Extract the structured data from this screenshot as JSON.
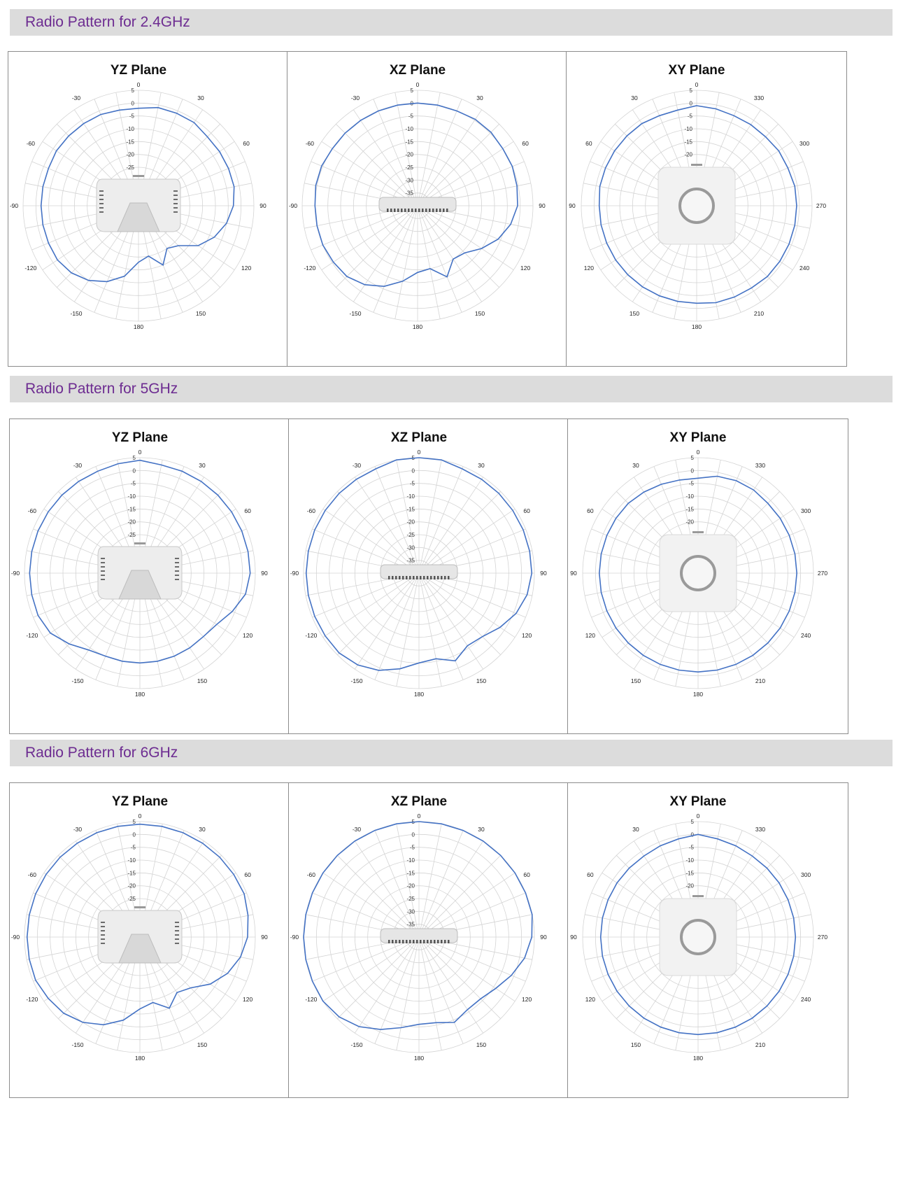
{
  "sections": [
    {
      "title": "Radio Pattern for 2.4GHz",
      "charts": [
        {
          "title": "YZ Plane",
          "angles": [
            "0",
            "30",
            "60",
            "90",
            "120",
            "150",
            "180",
            "-150",
            "-120",
            "-90",
            "-60",
            "-30"
          ],
          "radial_ticks": [
            "5",
            "0",
            "-5",
            "-10",
            "-15",
            "-20",
            "-25"
          ],
          "device": "ap-side",
          "values": [
            -2,
            -1,
            -1,
            -1,
            -2,
            -2,
            -2,
            -2,
            -3,
            -5,
            -8,
            -12,
            -18,
            -20,
            -15,
            -20,
            -18,
            -12,
            -8,
            -5,
            -3,
            -2,
            -2,
            -2,
            -2,
            -2,
            -2,
            -1.5,
            -1.5,
            -1.5,
            -1.5,
            -2
          ]
        },
        {
          "title": "XZ Plane",
          "angles": [
            "0",
            "30",
            "60",
            "90",
            "120",
            "150",
            "180",
            "-150",
            "-120",
            "-90",
            "-60",
            "-30"
          ],
          "radial_ticks": [
            "5",
            "0",
            "-5",
            "-10",
            "-15",
            "-20",
            "-25",
            "-30",
            "-35"
          ],
          "device": "ap-edge",
          "values": [
            0,
            0,
            0,
            0.5,
            0.5,
            0,
            0,
            -0.5,
            -1,
            -3,
            -6,
            -10,
            -14,
            -15,
            -10,
            -15,
            -14,
            -10,
            -6,
            -3,
            -1,
            -0.5,
            0,
            0,
            0,
            0.5,
            0.5,
            0,
            0,
            0,
            0,
            0
          ]
        },
        {
          "title": "XY Plane",
          "angles": [
            "0",
            "330",
            "300",
            "270",
            "240",
            "210",
            "180",
            "150",
            "120",
            "90",
            "60",
            "30"
          ],
          "radial_ticks": [
            "5",
            "0",
            "-5",
            "-10",
            "-15",
            "-20"
          ],
          "device": "ap-top",
          "values": [
            -1,
            -1.5,
            -2,
            -2,
            -2,
            -1.5,
            -1.5,
            -1,
            -1,
            -1,
            -1,
            -1,
            -1,
            -1.5,
            -1.5,
            -1.5,
            -2,
            -2,
            -2,
            -2,
            -2,
            -2,
            -2,
            -2,
            -2,
            -1.5,
            -1.5,
            -1.5,
            -1.5,
            -1.5,
            -2,
            -2
          ]
        }
      ]
    },
    {
      "title": "Radio Pattern for 5GHz",
      "charts": [
        {
          "title": "YZ Plane",
          "angles": [
            "0",
            "30",
            "60",
            "90",
            "120",
            "150",
            "180",
            "-150",
            "-120",
            "-90",
            "-60",
            "-30"
          ],
          "radial_ticks": [
            "5",
            "0",
            "-5",
            "-10",
            "-15",
            "-20",
            "-25"
          ],
          "device": "ap-side",
          "values": [
            4,
            3,
            3,
            3,
            3,
            3,
            3,
            3,
            3,
            2,
            -1,
            -4,
            -5,
            -5,
            -5,
            -5,
            -5,
            -5,
            -5,
            -4,
            -1,
            2,
            3,
            3,
            3,
            3,
            3,
            3,
            3,
            3,
            3,
            3.5
          ]
        },
        {
          "title": "XZ Plane",
          "angles": [
            "0",
            "30",
            "60",
            "90",
            "120",
            "150",
            "180",
            "-150",
            "-120",
            "-90",
            "-60",
            "-30"
          ],
          "radial_ticks": [
            "5",
            "0",
            "-5",
            "-10",
            "-15",
            "-20",
            "-25",
            "-30",
            "-35"
          ],
          "device": "ap-edge",
          "values": [
            5,
            5,
            4,
            4,
            4,
            4,
            4,
            4,
            4,
            3,
            1,
            -2,
            -5,
            -6,
            -3,
            -6,
            -5,
            -2,
            1,
            3,
            4,
            4,
            4,
            4,
            4,
            4,
            4,
            4,
            4,
            4,
            4,
            5
          ]
        },
        {
          "title": "XY Plane",
          "angles": [
            "0",
            "330",
            "300",
            "270",
            "240",
            "210",
            "180",
            "150",
            "120",
            "90",
            "60",
            "30"
          ],
          "radial_ticks": [
            "5",
            "0",
            "-5",
            "-10",
            "-15",
            "-20"
          ],
          "device": "ap-top",
          "values": [
            -3,
            -1.5,
            -1,
            -1,
            -1.5,
            -1.5,
            -1.5,
            -1.5,
            -1.5,
            -1.5,
            -1.5,
            -1.5,
            -1.5,
            -1.5,
            -1.5,
            -1.5,
            -1.5,
            -1.5,
            -1.5,
            -1.5,
            -1.5,
            -1.5,
            -1.5,
            -1.5,
            -1.5,
            -1.5,
            -1.5,
            -1.5,
            -1.5,
            -2,
            -2.5,
            -3
          ]
        }
      ]
    },
    {
      "title": "Radio Pattern for 6GHz",
      "charts": [
        {
          "title": "YZ Plane",
          "angles": [
            "0",
            "30",
            "60",
            "90",
            "120",
            "150",
            "180",
            "-150",
            "-120",
            "-90",
            "-60",
            "-30"
          ],
          "radial_ticks": [
            "5",
            "0",
            "-5",
            "-10",
            "-15",
            "-20",
            "-25"
          ],
          "device": "ap-side",
          "values": [
            4,
            4,
            4,
            4,
            4,
            4,
            4,
            3,
            2,
            0,
            -3,
            -7,
            -12,
            -14,
            -10,
            -14,
            -12,
            -7,
            -3,
            0,
            2,
            3,
            4,
            4,
            4,
            4,
            4,
            4,
            4,
            4,
            4,
            4
          ]
        },
        {
          "title": "XZ Plane",
          "angles": [
            "0",
            "30",
            "60",
            "90",
            "120",
            "150",
            "180",
            "-150",
            "-120",
            "-90",
            "-60",
            "-30"
          ],
          "radial_ticks": [
            "5",
            "0",
            "-5",
            "-10",
            "-15",
            "-20",
            "-25",
            "-30",
            "-35"
          ],
          "device": "ap-edge",
          "values": [
            5,
            5,
            5,
            5,
            5,
            5,
            5,
            5,
            4,
            2,
            -1,
            -4,
            -6,
            -6,
            -4,
            -6,
            -6,
            -4,
            -1,
            2,
            4,
            5,
            5,
            5,
            5,
            5,
            5,
            5,
            5,
            5,
            5,
            5
          ]
        },
        {
          "title": "XY Plane",
          "angles": [
            "0",
            "330",
            "300",
            "270",
            "240",
            "210",
            "180",
            "150",
            "120",
            "90",
            "60",
            "30"
          ],
          "radial_ticks": [
            "5",
            "0",
            "-5",
            "-10",
            "-15",
            "-20"
          ],
          "device": "ap-top",
          "values": [
            0,
            -1,
            -1.5,
            -2,
            -2,
            -2,
            -2,
            -2,
            -2,
            -2,
            -2,
            -2,
            -2,
            -2,
            -2,
            -2,
            -2,
            -2,
            -2,
            -2,
            -2,
            -2,
            -2,
            -2,
            -2,
            -2,
            -2,
            -2,
            -2,
            -2,
            -1.5,
            -1
          ]
        }
      ]
    }
  ],
  "chart_data": {
    "type": "polar-line",
    "radial_range_dB": [
      -40,
      5
    ],
    "angle_step_deg": 11.25,
    "series_color": "#4472c4",
    "grid": true
  }
}
